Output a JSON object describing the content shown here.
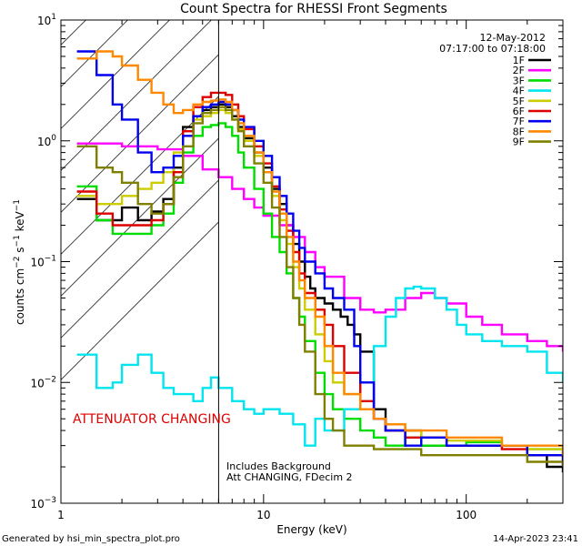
{
  "chart_data": {
    "type": "line",
    "title": "Count Spectra for RHESSI Front Segments",
    "xlabel": "Energy (keV)",
    "ylabel": "counts cm",
    "ylabel_sup1": "−2",
    "ylabel_mid": " s",
    "ylabel_sup2": "−1",
    "ylabel_end": " keV",
    "ylabel_sup3": "−1",
    "xscale": "log",
    "yscale": "log",
    "xlim": [
      1,
      300
    ],
    "ylim": [
      0.001,
      10
    ],
    "x_ticks": [
      {
        "value": 1,
        "label": "1"
      },
      {
        "value": 10,
        "label": "10"
      },
      {
        "value": 100,
        "label": "100"
      }
    ],
    "y_ticks": [
      {
        "value": 0.001,
        "base": "10",
        "exp": "−3"
      },
      {
        "value": 0.01,
        "base": "10",
        "exp": "−2"
      },
      {
        "value": 0.1,
        "base": "10",
        "exp": "−1"
      },
      {
        "value": 1,
        "base": "10",
        "exp": "0"
      },
      {
        "value": 10,
        "base": "10",
        "exp": "1"
      }
    ],
    "attenuator_boundary_kev": 6,
    "date_line": "12-May-2012",
    "time_line": "07:17:00 to 07:18:00",
    "attenuator_label": "ATTENUATOR CHANGING",
    "note_line1": "Includes Background",
    "note_line2": "Att CHANGING, FDecim 2",
    "footer_left": "Generated by hsi_min_spectra_plot.pro",
    "footer_right": "14-Apr-2023 23:41",
    "series": [
      {
        "name": "1F",
        "color": "#000000",
        "x": [
          1.2,
          1.5,
          1.8,
          2,
          2.4,
          2.8,
          3.2,
          3.6,
          4,
          4.5,
          5,
          5.5,
          6,
          6.5,
          7,
          7.5,
          8,
          9,
          10,
          11,
          12,
          13,
          14,
          15,
          16,
          17,
          18,
          20,
          22,
          24,
          26,
          28,
          30,
          35,
          40,
          50,
          60,
          80,
          100,
          150,
          200,
          250,
          300
        ],
        "y": [
          0.33,
          0.22,
          0.22,
          0.28,
          0.22,
          0.26,
          0.33,
          0.6,
          1.3,
          1.6,
          1.8,
          1.9,
          2.0,
          1.9,
          1.6,
          1.3,
          1.05,
          0.8,
          0.6,
          0.4,
          0.3,
          0.2,
          0.14,
          0.1,
          0.075,
          0.06,
          0.05,
          0.045,
          0.04,
          0.035,
          0.03,
          0.025,
          0.018,
          0.006,
          0.004,
          0.004,
          0.003,
          0.003,
          0.003,
          0.003,
          0.0025,
          0.002,
          0.0018
        ]
      },
      {
        "name": "2F",
        "color": "#ff00ff",
        "x": [
          1.2,
          1.5,
          2,
          3,
          4,
          5,
          6,
          7,
          8,
          9,
          10,
          12,
          14,
          16,
          18,
          20,
          25,
          30,
          35,
          40,
          50,
          60,
          70,
          80,
          100,
          120,
          150,
          200,
          250,
          300
        ],
        "y": [
          0.95,
          0.95,
          0.9,
          0.85,
          0.75,
          0.58,
          0.5,
          0.4,
          0.33,
          0.28,
          0.24,
          0.2,
          0.16,
          0.12,
          0.09,
          0.075,
          0.05,
          0.04,
          0.038,
          0.04,
          0.05,
          0.055,
          0.05,
          0.045,
          0.035,
          0.03,
          0.025,
          0.022,
          0.02,
          0.018
        ]
      },
      {
        "name": "3F",
        "color": "#00dd00",
        "x": [
          1.2,
          1.5,
          1.8,
          2,
          2.4,
          2.8,
          3.2,
          3.6,
          4,
          4.5,
          5,
          5.5,
          6,
          6.5,
          7,
          7.5,
          8,
          9,
          10,
          11,
          12,
          13,
          14,
          15,
          16,
          18,
          20,
          22,
          25,
          30,
          35,
          40,
          50,
          60,
          80,
          100,
          150,
          200,
          300
        ],
        "y": [
          0.42,
          0.22,
          0.17,
          0.17,
          0.17,
          0.2,
          0.25,
          0.45,
          0.8,
          1.1,
          1.3,
          1.35,
          1.4,
          1.3,
          1.1,
          0.8,
          0.6,
          0.4,
          0.25,
          0.16,
          0.12,
          0.08,
          0.05,
          0.035,
          0.022,
          0.012,
          0.008,
          0.006,
          0.005,
          0.004,
          0.0035,
          0.003,
          0.0035,
          0.003,
          0.003,
          0.0032,
          0.003,
          0.0028,
          0.0025
        ]
      },
      {
        "name": "4F",
        "color": "#00e5ee",
        "x": [
          1.2,
          1.5,
          1.8,
          2,
          2.4,
          2.8,
          3.2,
          3.6,
          4,
          4.5,
          5,
          5.5,
          6,
          7,
          8,
          9,
          10,
          12,
          14,
          16,
          18,
          20,
          25,
          30,
          35,
          40,
          45,
          50,
          55,
          60,
          70,
          80,
          90,
          100,
          120,
          150,
          200,
          250,
          300
        ],
        "y": [
          0.017,
          0.009,
          0.01,
          0.014,
          0.017,
          0.012,
          0.009,
          0.008,
          0.008,
          0.007,
          0.009,
          0.011,
          0.009,
          0.007,
          0.006,
          0.0055,
          0.006,
          0.0055,
          0.0045,
          0.003,
          0.005,
          0.004,
          0.006,
          0.01,
          0.02,
          0.035,
          0.05,
          0.06,
          0.062,
          0.06,
          0.05,
          0.04,
          0.03,
          0.025,
          0.022,
          0.02,
          0.018,
          0.012,
          0.01
        ]
      },
      {
        "name": "5F",
        "color": "#cccc00",
        "x": [
          1.2,
          1.5,
          1.8,
          2,
          2.4,
          2.8,
          3.2,
          3.6,
          4,
          4.5,
          5,
          5.5,
          6,
          6.5,
          7,
          7.5,
          8,
          9,
          10,
          11,
          12,
          13,
          14,
          15,
          16,
          18,
          20,
          22,
          25,
          30,
          35,
          40,
          50,
          60,
          80,
          100,
          150,
          200,
          300
        ],
        "y": [
          0.35,
          0.3,
          0.3,
          0.35,
          0.4,
          0.45,
          0.55,
          0.8,
          1.2,
          1.5,
          1.6,
          1.7,
          1.8,
          1.7,
          1.5,
          1.25,
          1.0,
          0.75,
          0.55,
          0.35,
          0.22,
          0.14,
          0.09,
          0.06,
          0.04,
          0.025,
          0.015,
          0.01,
          0.008,
          0.006,
          0.005,
          0.0045,
          0.004,
          0.0035,
          0.0033,
          0.0033,
          0.003,
          0.0028,
          0.0025
        ]
      },
      {
        "name": "6F",
        "color": "#dd0000",
        "x": [
          1.2,
          1.5,
          1.8,
          2,
          2.4,
          2.8,
          3.2,
          3.6,
          4,
          4.5,
          5,
          5.5,
          6,
          6.5,
          7,
          7.5,
          8,
          9,
          10,
          11,
          12,
          13,
          14,
          15,
          16,
          18,
          20,
          22,
          25,
          30,
          35,
          40,
          50,
          60,
          80,
          100,
          150,
          200,
          300
        ],
        "y": [
          0.38,
          0.25,
          0.2,
          0.2,
          0.2,
          0.22,
          0.3,
          0.55,
          1.2,
          1.9,
          2.3,
          2.5,
          2.5,
          2.4,
          2.0,
          1.6,
          1.25,
          0.9,
          0.65,
          0.42,
          0.27,
          0.18,
          0.12,
          0.08,
          0.055,
          0.04,
          0.03,
          0.02,
          0.012,
          0.007,
          0.005,
          0.004,
          0.0035,
          0.0035,
          0.003,
          0.003,
          0.0028,
          0.0025,
          0.0022
        ]
      },
      {
        "name": "7F",
        "color": "#0000ee",
        "x": [
          1.2,
          1.5,
          1.8,
          2,
          2.4,
          2.8,
          3.2,
          3.6,
          4,
          4.5,
          5,
          5.5,
          6,
          6.5,
          7,
          7.5,
          8,
          9,
          10,
          11,
          12,
          13,
          14,
          15,
          16,
          18,
          20,
          22,
          25,
          28,
          30,
          35,
          40,
          50,
          60,
          80,
          100,
          150,
          200,
          300
        ],
        "y": [
          5.5,
          3.5,
          2.0,
          1.5,
          0.8,
          0.55,
          0.6,
          0.75,
          1.1,
          1.6,
          1.9,
          2.0,
          2.1,
          2.0,
          1.8,
          1.5,
          1.3,
          1.0,
          0.75,
          0.5,
          0.35,
          0.25,
          0.18,
          0.13,
          0.1,
          0.08,
          0.06,
          0.05,
          0.04,
          0.02,
          0.01,
          0.005,
          0.004,
          0.003,
          0.0035,
          0.003,
          0.003,
          0.003,
          0.0025,
          0.002
        ]
      },
      {
        "name": "8F",
        "color": "#ff8800",
        "x": [
          1.2,
          1.5,
          1.8,
          2,
          2.4,
          2.8,
          3.2,
          3.6,
          4,
          4.5,
          5,
          5.5,
          6,
          6.5,
          7,
          7.5,
          8,
          9,
          10,
          11,
          12,
          13,
          14,
          15,
          16,
          18,
          20,
          22,
          25,
          30,
          35,
          40,
          50,
          60,
          80,
          100,
          150,
          200,
          300
        ],
        "y": [
          4.8,
          5.5,
          5.0,
          4.2,
          3.2,
          2.5,
          2.0,
          1.7,
          1.8,
          2.0,
          2.1,
          2.15,
          2.2,
          2.1,
          1.8,
          1.4,
          1.1,
          0.8,
          0.55,
          0.38,
          0.25,
          0.16,
          0.1,
          0.07,
          0.05,
          0.035,
          0.02,
          0.012,
          0.008,
          0.006,
          0.005,
          0.0045,
          0.004,
          0.004,
          0.0035,
          0.0035,
          0.003,
          0.003,
          0.0025
        ]
      },
      {
        "name": "9F",
        "color": "#808000",
        "x": [
          1.2,
          1.5,
          1.8,
          2,
          2.4,
          2.8,
          3.2,
          3.6,
          4,
          4.5,
          5,
          5.5,
          6,
          6.5,
          7,
          7.5,
          8,
          9,
          10,
          11,
          12,
          13,
          14,
          15,
          16,
          18,
          20,
          22,
          25,
          30,
          35,
          40,
          50,
          60,
          80,
          100,
          150,
          200,
          300
        ],
        "y": [
          0.9,
          0.6,
          0.55,
          0.45,
          0.3,
          0.25,
          0.3,
          0.5,
          0.9,
          1.4,
          1.7,
          1.8,
          1.9,
          1.8,
          1.5,
          1.2,
          0.9,
          0.65,
          0.45,
          0.28,
          0.16,
          0.09,
          0.05,
          0.03,
          0.018,
          0.008,
          0.005,
          0.004,
          0.003,
          0.003,
          0.0028,
          0.0028,
          0.0028,
          0.0025,
          0.0025,
          0.0025,
          0.0025,
          0.0022,
          0.002
        ]
      }
    ]
  }
}
